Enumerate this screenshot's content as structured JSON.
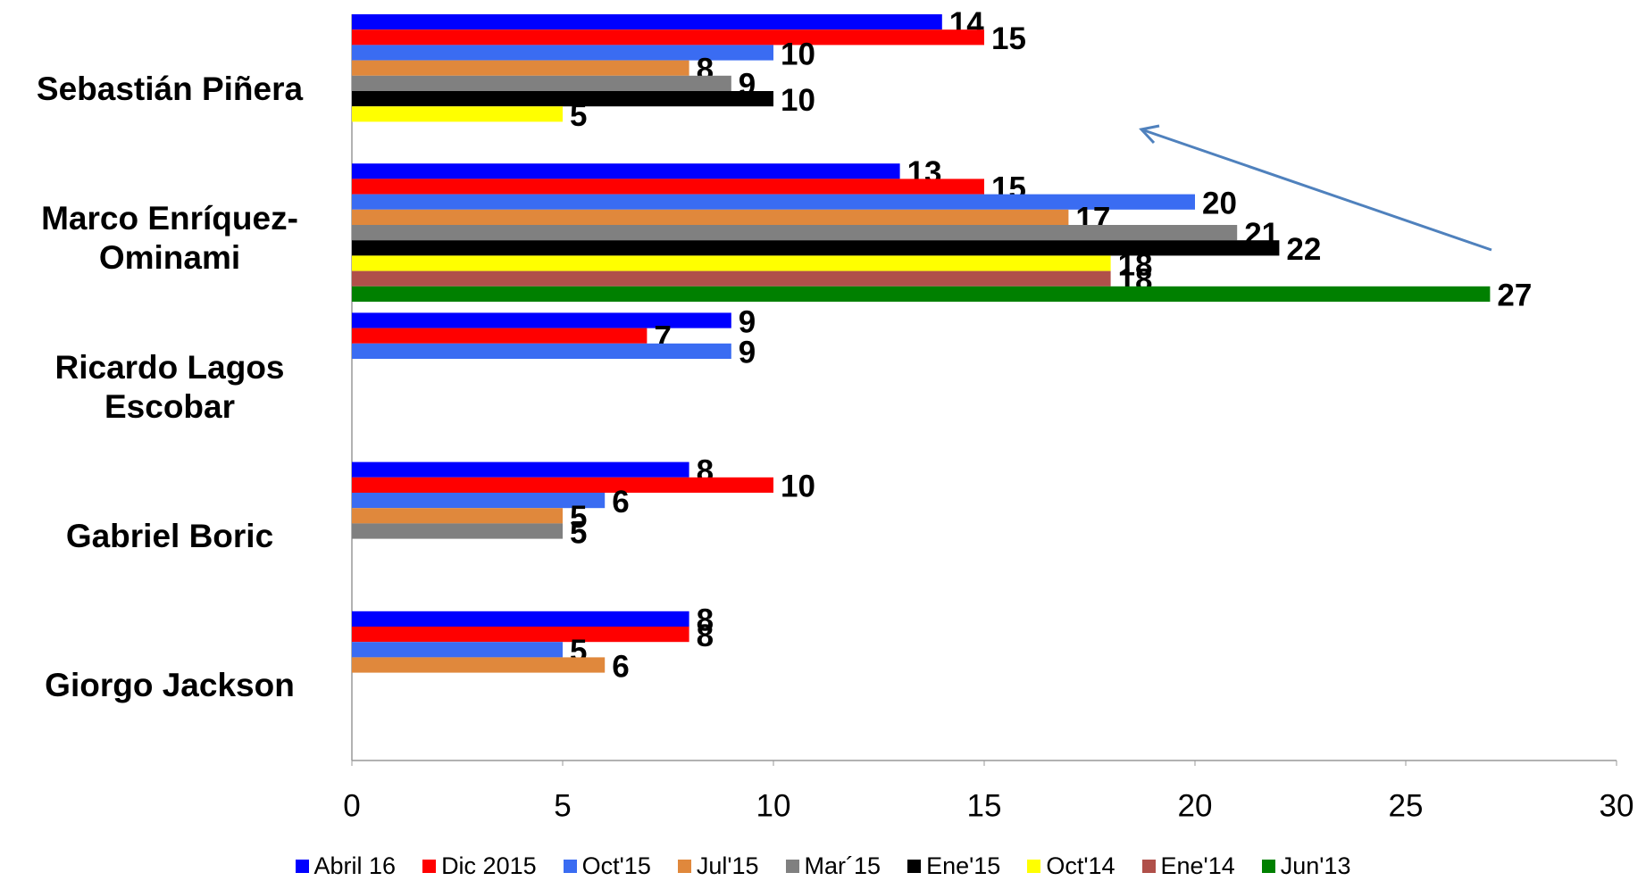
{
  "chart_data": {
    "type": "bar",
    "orientation": "horizontal",
    "categories": [
      "Sebastián Piñera",
      "Marco Enríquez-Ominami",
      "Ricardo Lagos Escobar",
      "Gabriel Boric",
      "Giorgo Jackson"
    ],
    "series": [
      {
        "name": "Abril 16",
        "color": "#0000ff",
        "values": [
          14,
          13,
          9,
          8,
          8
        ]
      },
      {
        "name": "Dic 2015",
        "color": "#ff0000",
        "values": [
          15,
          15,
          7,
          10,
          8
        ]
      },
      {
        "name": "Oct'15",
        "color": "#3a6cf2",
        "values": [
          10,
          20,
          9,
          6,
          5
        ]
      },
      {
        "name": "Jul'15",
        "color": "#e0883c",
        "values": [
          8,
          17,
          null,
          5,
          6
        ]
      },
      {
        "name": "Mar´15",
        "color": "#808080",
        "values": [
          9,
          21,
          null,
          5,
          null
        ]
      },
      {
        "name": "Ene'15",
        "color": "#000000",
        "values": [
          10,
          22,
          null,
          null,
          null
        ]
      },
      {
        "name": "Oct'14",
        "color": "#ffff00",
        "values": [
          5,
          18,
          null,
          null,
          null
        ]
      },
      {
        "name": "Ene'14",
        "color": "#b0504a",
        "values": [
          null,
          18,
          null,
          null,
          null
        ]
      },
      {
        "name": "Jun'13",
        "color": "#008000",
        "values": [
          null,
          27,
          null,
          null,
          null
        ]
      }
    ],
    "xlim": [
      0,
      30
    ],
    "xticks": [
      0,
      5,
      10,
      15,
      20,
      25,
      30
    ],
    "grid": false,
    "legend": "bottom"
  }
}
